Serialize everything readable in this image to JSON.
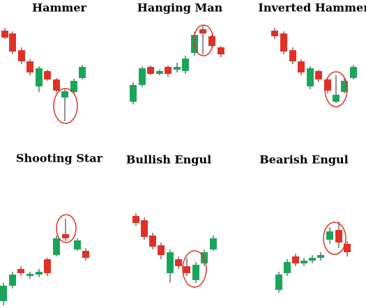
{
  "panels": [
    {
      "title": "Hammer"
    },
    {
      "title": "Hanging Man"
    },
    {
      "title": "Inverted Hammer"
    },
    {
      "title": "Shooting Star"
    },
    {
      "title": "Bullish Engul"
    },
    {
      "title": "Bearish Engul"
    }
  ]
}
